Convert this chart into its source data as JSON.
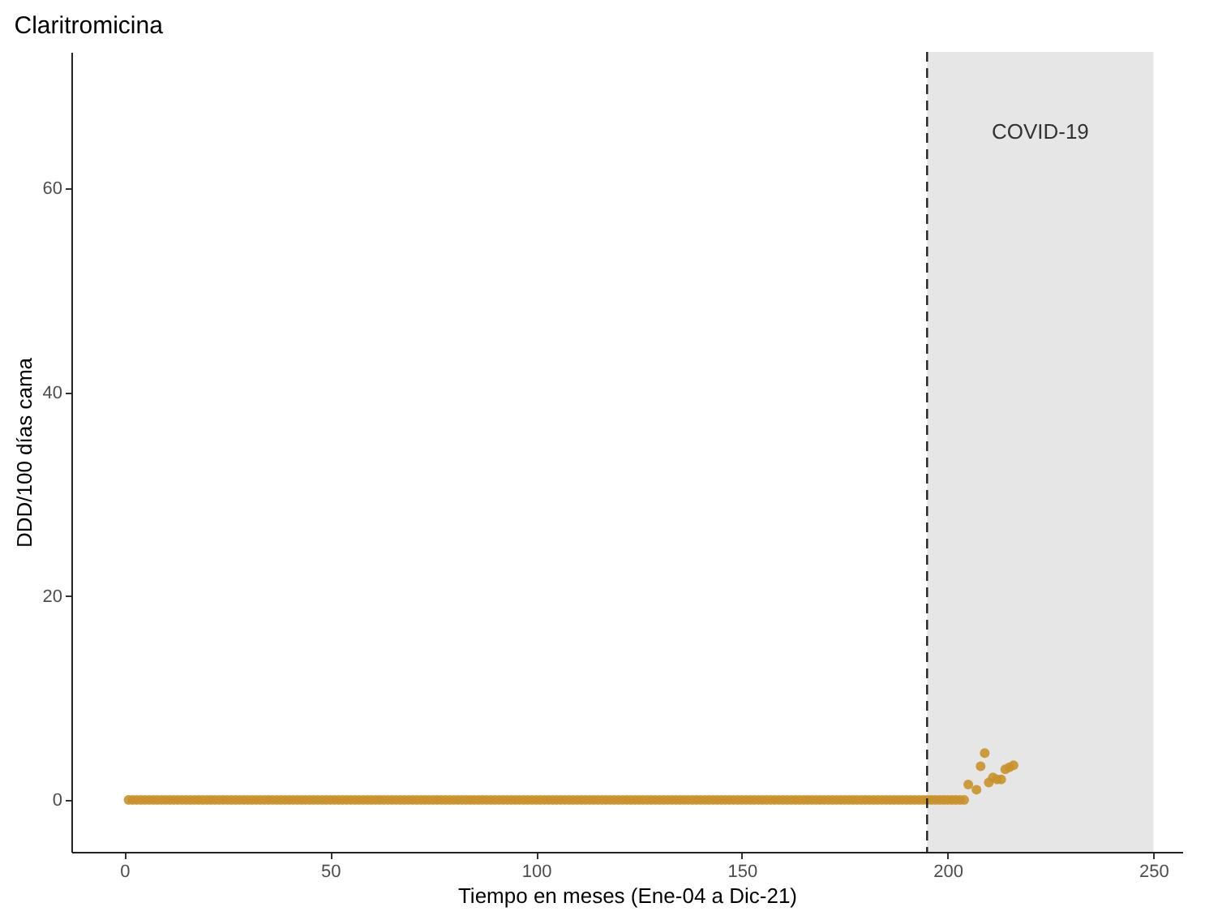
{
  "chart_data": {
    "type": "scatter",
    "title": "Claritromicina",
    "xlabel": "Tiempo en meses (Ene-04 a Dic-21)",
    "ylabel": "DDD/100 días cama",
    "xlim": [
      -12.9,
      257
    ],
    "xticks": [
      0,
      50,
      100,
      150,
      200,
      250
    ],
    "ylim": [
      -5.1,
      73.4
    ],
    "yticks": [
      0,
      20,
      40,
      60
    ],
    "grid": false,
    "marker": "circle",
    "ref_lines": [
      {
        "axis": "x",
        "value": 195,
        "line_style": "dashed",
        "color": "#222222"
      }
    ],
    "bands": [
      {
        "axis": "x",
        "from": 195,
        "to": 250,
        "label": "COVID-19",
        "color": "#e6e6e6"
      }
    ],
    "series": [
      {
        "color": "#c8922a",
        "x": [
          1,
          2,
          3,
          4,
          5,
          6,
          7,
          8,
          9,
          10,
          11,
          12,
          13,
          14,
          15,
          16,
          17,
          18,
          19,
          20,
          21,
          22,
          23,
          24,
          25,
          26,
          27,
          28,
          29,
          30,
          31,
          32,
          33,
          34,
          35,
          36,
          37,
          38,
          39,
          40,
          41,
          42,
          43,
          44,
          45,
          46,
          47,
          48,
          49,
          50,
          51,
          52,
          53,
          54,
          55,
          56,
          57,
          58,
          59,
          60,
          61,
          62,
          63,
          64,
          65,
          66,
          67,
          68,
          69,
          70,
          71,
          72,
          73,
          74,
          75,
          76,
          77,
          78,
          79,
          80,
          81,
          82,
          83,
          84,
          85,
          86,
          87,
          88,
          89,
          90,
          91,
          92,
          93,
          94,
          95,
          96,
          97,
          98,
          99,
          100,
          101,
          102,
          103,
          104,
          105,
          106,
          107,
          108,
          109,
          110,
          111,
          112,
          113,
          114,
          115,
          116,
          117,
          118,
          119,
          120,
          121,
          122,
          123,
          124,
          125,
          126,
          127,
          128,
          129,
          130,
          131,
          132,
          133,
          134,
          135,
          136,
          137,
          138,
          139,
          140,
          141,
          142,
          143,
          144,
          145,
          146,
          147,
          148,
          149,
          150,
          151,
          152,
          153,
          154,
          155,
          156,
          157,
          158,
          159,
          160,
          161,
          162,
          163,
          164,
          165,
          166,
          167,
          168,
          169,
          170,
          171,
          172,
          173,
          174,
          175,
          176,
          177,
          178,
          179,
          180,
          181,
          182,
          183,
          184,
          185,
          186,
          187,
          188,
          189,
          190,
          191,
          192,
          193,
          194,
          195,
          196,
          197,
          198,
          199,
          200,
          201,
          202,
          203,
          204,
          205,
          207,
          208,
          209,
          210,
          211,
          212,
          213,
          214,
          215,
          216
        ],
        "values": [
          0,
          0,
          0,
          0,
          0,
          0,
          0,
          0,
          0,
          0,
          0,
          0,
          0,
          0,
          0,
          0,
          0,
          0,
          0,
          0,
          0,
          0,
          0,
          0,
          0,
          0,
          0,
          0,
          0,
          0,
          0,
          0,
          0,
          0,
          0,
          0,
          0,
          0,
          0,
          0,
          0,
          0,
          0,
          0,
          0,
          0,
          0,
          0,
          0,
          0,
          0,
          0,
          0,
          0,
          0,
          0,
          0,
          0,
          0,
          0,
          0,
          0,
          0,
          0,
          0,
          0,
          0,
          0,
          0,
          0,
          0,
          0,
          0,
          0,
          0,
          0,
          0,
          0,
          0,
          0,
          0,
          0,
          0,
          0,
          0,
          0,
          0,
          0,
          0,
          0,
          0,
          0,
          0,
          0,
          0,
          0,
          0,
          0,
          0,
          0,
          0,
          0,
          0,
          0,
          0,
          0,
          0,
          0,
          0,
          0,
          0,
          0,
          0,
          0,
          0,
          0,
          0,
          0,
          0,
          0,
          0,
          0,
          0,
          0,
          0,
          0,
          0,
          0,
          0,
          0,
          0,
          0,
          0,
          0,
          0,
          0,
          0,
          0,
          0,
          0,
          0,
          0,
          0,
          0,
          0,
          0,
          0,
          0,
          0,
          0,
          0,
          0,
          0,
          0,
          0,
          0,
          0,
          0,
          0,
          0,
          0,
          0,
          0,
          0,
          0,
          0,
          0,
          0,
          0,
          0,
          0,
          0,
          0,
          0,
          0,
          0,
          0,
          0,
          0,
          0,
          0,
          0,
          0,
          0,
          0,
          0,
          0,
          0,
          0,
          0,
          0,
          0,
          0,
          0,
          0,
          0,
          0,
          0,
          0,
          0,
          0,
          0,
          0,
          0,
          1.5,
          1.0,
          3.3,
          4.6,
          1.7,
          2.2,
          2.0,
          2.0,
          3.0,
          3.2,
          3.4
        ]
      }
    ]
  }
}
